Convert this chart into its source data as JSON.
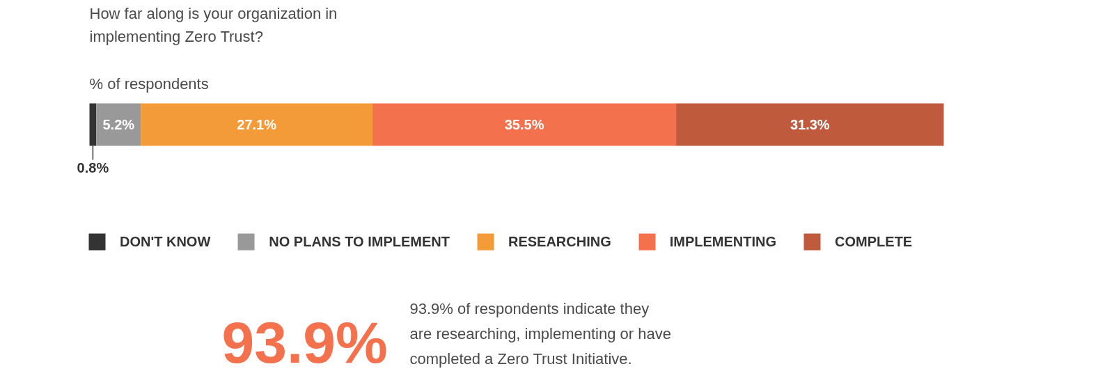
{
  "chart_data": {
    "type": "bar",
    "orientation": "horizontal",
    "stacked": true,
    "title": "How far along is your organization in implementing Zero Trust?",
    "subtitle": "% of respondents",
    "categories": [
      null
    ],
    "series": [
      {
        "name": "DON'T KNOW",
        "color": "#333333",
        "values": [
          0.8
        ],
        "value_labels": [
          "0.8%"
        ]
      },
      {
        "name": "NO PLANS TO IMPLEMENT",
        "color": "#999999",
        "values": [
          5.2
        ],
        "value_labels": [
          "5.2%"
        ]
      },
      {
        "name": "RESEARCHING",
        "color": "#f29b38",
        "values": [
          27.1
        ],
        "value_labels": [
          "27.1%"
        ]
      },
      {
        "name": "IMPLEMENTING",
        "color": "#f4714e",
        "values": [
          35.5
        ],
        "value_labels": [
          "35.5%"
        ]
      },
      {
        "name": "COMPLETE",
        "color": "#bf5a3d",
        "values": [
          31.3
        ],
        "value_labels": [
          "31.3%"
        ]
      }
    ],
    "legend": "bottom",
    "annotations": [
      "93.9%",
      "93.9% of respondents indicate they are researching, implementing or have completed a Zero Trust Initiative."
    ]
  }
}
